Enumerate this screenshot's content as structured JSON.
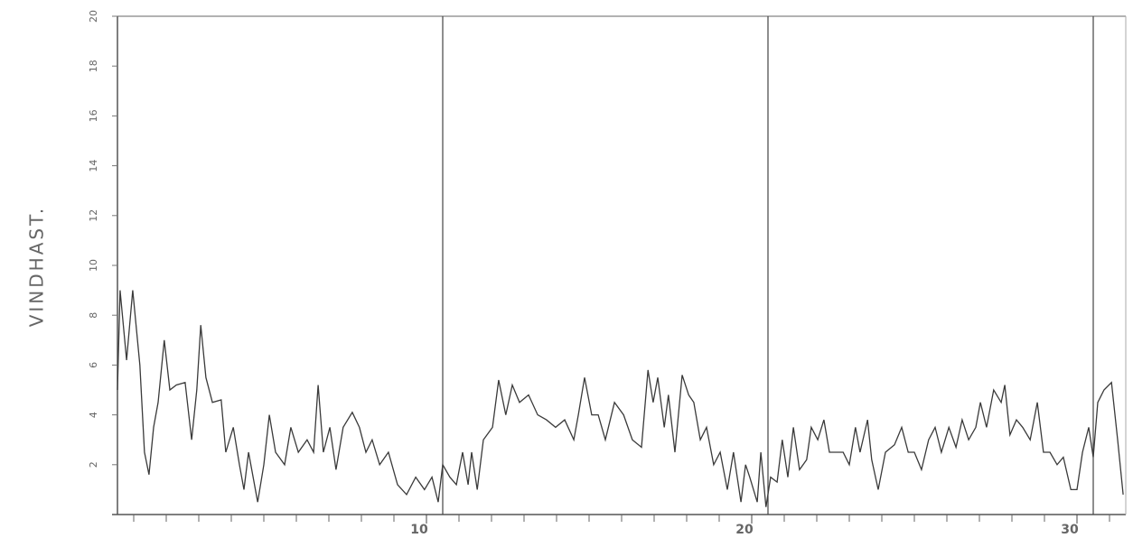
{
  "chart_data": {
    "type": "line",
    "ylabel": "VINDHAST.",
    "xlim": [
      0.5,
      31.5
    ],
    "ylim": [
      0,
      20
    ],
    "xticks": [
      10,
      20,
      30
    ],
    "xminorticks": [
      1,
      2,
      3,
      4,
      5,
      6,
      7,
      8,
      9,
      10,
      11,
      12,
      13,
      14,
      15,
      16,
      17,
      18,
      19,
      20,
      21,
      22,
      23,
      24,
      25,
      26,
      27,
      28,
      29,
      30,
      31
    ],
    "yticks": [
      2,
      4,
      6,
      8,
      10,
      12,
      14,
      16,
      18,
      20
    ],
    "vlines": [
      10.5,
      20.5,
      30.5
    ],
    "series": [
      {
        "color": "#3a3a3a",
        "x": [
          0.5,
          0.58,
          0.78,
          0.97,
          1.19,
          1.33,
          1.47,
          1.61,
          1.75,
          1.94,
          2.11,
          2.31,
          2.58,
          2.78,
          2.94,
          3.06,
          3.22,
          3.42,
          3.69,
          3.83,
          4.06,
          4.25,
          4.39,
          4.53,
          4.81,
          5.0,
          5.17,
          5.36,
          5.64,
          5.83,
          6.06,
          6.33,
          6.53,
          6.67,
          6.83,
          7.03,
          7.22,
          7.44,
          7.72,
          7.94,
          8.14,
          8.33,
          8.56,
          8.83,
          9.11,
          9.39,
          9.67,
          9.94,
          10.17,
          10.36,
          10.5,
          10.72,
          10.92,
          11.11,
          11.28,
          11.39,
          11.56,
          11.75,
          12.03,
          12.22,
          12.44,
          12.64,
          12.86,
          13.14,
          13.42,
          13.69,
          13.97,
          14.25,
          14.53,
          14.67,
          14.86,
          15.08,
          15.28,
          15.5,
          15.78,
          16.06,
          16.33,
          16.61,
          16.81,
          16.97,
          17.11,
          17.31,
          17.44,
          17.64,
          17.86,
          18.06,
          18.22,
          18.42,
          18.61,
          18.83,
          19.03,
          19.25,
          19.44,
          19.67,
          19.81,
          19.94,
          20.17,
          20.28,
          20.44,
          20.58,
          20.78,
          20.94,
          21.11,
          21.28,
          21.47,
          21.69,
          21.83,
          22.03,
          22.22,
          22.39,
          22.58,
          22.81,
          23.0,
          23.19,
          23.33,
          23.56,
          23.69,
          23.89,
          24.11,
          24.39,
          24.61,
          24.81,
          25.0,
          25.22,
          25.44,
          25.64,
          25.83,
          26.06,
          26.28,
          26.47,
          26.67,
          26.89,
          27.03,
          27.22,
          27.44,
          27.67,
          27.78,
          27.94,
          28.14,
          28.33,
          28.56,
          28.78,
          28.97,
          29.17,
          29.39,
          29.58,
          29.81,
          30.0,
          30.17,
          30.36,
          30.5,
          30.64,
          30.83,
          31.06,
          31.25,
          31.42
        ],
        "values": [
          5,
          9,
          6.2,
          9,
          6,
          2.5,
          1.6,
          3.5,
          4.5,
          7,
          5,
          5.2,
          5.3,
          3,
          5,
          7.6,
          5.5,
          4.5,
          4.6,
          2.5,
          3.5,
          2,
          1,
          2.5,
          0.5,
          2,
          4,
          2.5,
          2,
          3.5,
          2.5,
          3,
          2.5,
          5.2,
          2.5,
          3.5,
          1.8,
          3.5,
          4.1,
          3.5,
          2.5,
          3,
          2,
          2.5,
          1.2,
          0.8,
          1.5,
          1,
          1.5,
          0.5,
          2,
          1.5,
          1.2,
          2.5,
          1.2,
          2.5,
          1,
          3,
          3.5,
          5.4,
          4,
          5.2,
          4.5,
          4.8,
          4,
          3.8,
          3.5,
          3.8,
          3,
          4,
          5.5,
          4,
          4,
          3,
          4.5,
          4,
          3,
          2.7,
          5.8,
          4.5,
          5.5,
          3.5,
          4.8,
          2.5,
          5.6,
          4.8,
          4.5,
          3,
          3.5,
          2,
          2.5,
          1,
          2.5,
          0.5,
          2,
          1.5,
          0.5,
          2.5,
          0.3,
          1.5,
          1.3,
          3,
          1.5,
          3.5,
          1.8,
          2.2,
          3.5,
          3,
          3.8,
          2.5,
          2.5,
          2.5,
          2,
          3.5,
          2.5,
          3.8,
          2.2,
          1,
          2.5,
          2.8,
          3.5,
          2.5,
          2.5,
          1.8,
          3,
          3.5,
          2.5,
          3.5,
          2.7,
          3.8,
          3,
          3.5,
          4.5,
          3.5,
          5,
          4.5,
          5.2,
          3.2,
          3.8,
          3.5,
          3,
          4.5,
          2.5,
          2.5,
          2,
          2.3,
          1,
          1,
          2.5,
          3.5,
          2.3,
          4.5,
          5,
          5.3,
          3,
          0.8
        ]
      }
    ]
  }
}
